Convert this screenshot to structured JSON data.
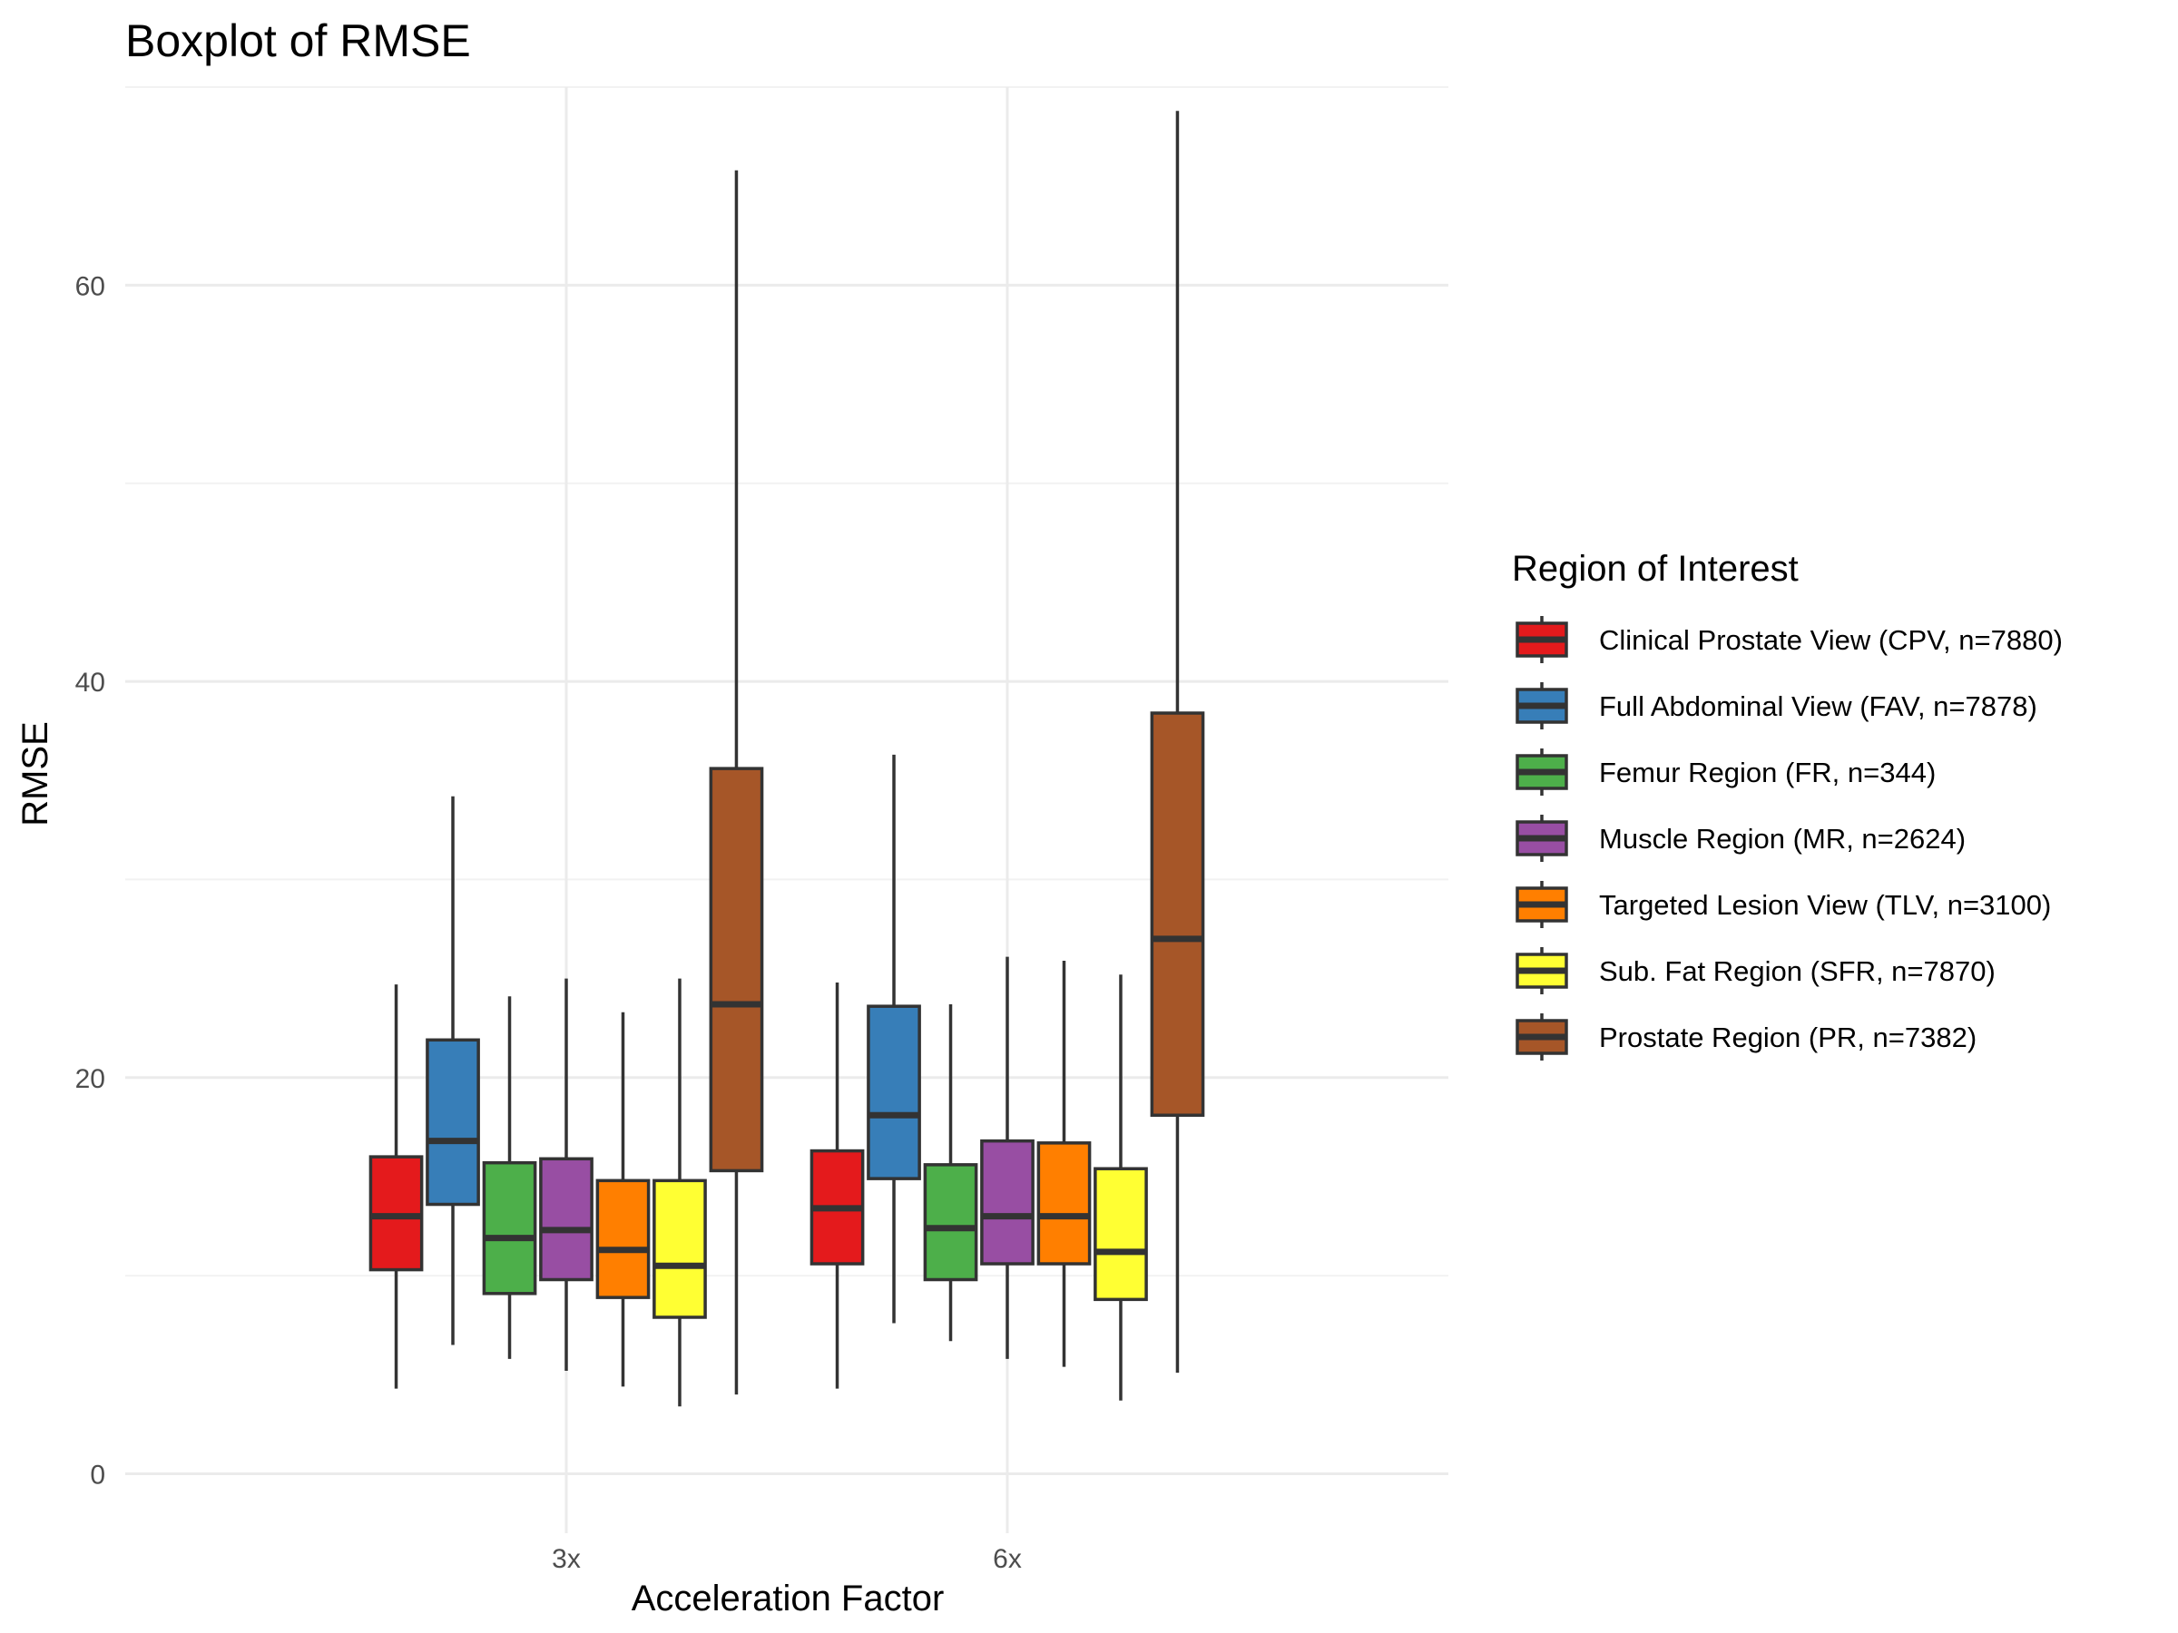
{
  "chart_data": {
    "type": "boxplot",
    "title": "Boxplot of RMSE",
    "xlabel": "Acceleration Factor",
    "ylabel": "RMSE",
    "ylim": [
      -3,
      70
    ],
    "y_ticks": [
      0,
      20,
      40,
      60
    ],
    "categories": [
      "3x",
      "6x"
    ],
    "legend": {
      "title": "Region of Interest",
      "position": "right"
    },
    "grid": true,
    "series": [
      {
        "name": "Clinical Prostate View (CPV, n=7880)",
        "color": "#E41A1C",
        "boxes": [
          {
            "whisker_low": 4.3,
            "q1": 10.3,
            "median": 13.0,
            "q3": 16.0,
            "whisker_high": 24.7
          },
          {
            "whisker_low": 4.3,
            "q1": 10.6,
            "median": 13.4,
            "q3": 16.3,
            "whisker_high": 24.8
          }
        ]
      },
      {
        "name": "Full Abdominal View (FAV, n=7878)",
        "color": "#377EB8",
        "boxes": [
          {
            "whisker_low": 6.5,
            "q1": 13.6,
            "median": 16.8,
            "q3": 21.9,
            "whisker_high": 34.2
          },
          {
            "whisker_low": 7.6,
            "q1": 14.9,
            "median": 18.1,
            "q3": 23.6,
            "whisker_high": 36.3
          }
        ]
      },
      {
        "name": "Femur Region (FR, n=344)",
        "color": "#4DAF4A",
        "boxes": [
          {
            "whisker_low": 5.8,
            "q1": 9.1,
            "median": 11.9,
            "q3": 15.7,
            "whisker_high": 24.1
          },
          {
            "whisker_low": 6.7,
            "q1": 9.8,
            "median": 12.4,
            "q3": 15.6,
            "whisker_high": 23.7
          }
        ]
      },
      {
        "name": "Muscle Region (MR, n=2624)",
        "color": "#984EA3",
        "boxes": [
          {
            "whisker_low": 5.2,
            "q1": 9.8,
            "median": 12.3,
            "q3": 15.9,
            "whisker_high": 25.0
          },
          {
            "whisker_low": 5.8,
            "q1": 10.6,
            "median": 13.0,
            "q3": 16.8,
            "whisker_high": 26.1
          }
        ]
      },
      {
        "name": "Targeted Lesion View (TLV, n=3100)",
        "color": "#FF7F00",
        "boxes": [
          {
            "whisker_low": 4.4,
            "q1": 8.9,
            "median": 11.3,
            "q3": 14.8,
            "whisker_high": 23.3
          },
          {
            "whisker_low": 5.4,
            "q1": 10.6,
            "median": 13.0,
            "q3": 16.7,
            "whisker_high": 25.9
          }
        ]
      },
      {
        "name": "Sub. Fat Region (SFR, n=7870)",
        "color": "#FFFF33",
        "boxes": [
          {
            "whisker_low": 3.4,
            "q1": 7.9,
            "median": 10.5,
            "q3": 14.8,
            "whisker_high": 25.0
          },
          {
            "whisker_low": 3.7,
            "q1": 8.8,
            "median": 11.2,
            "q3": 15.4,
            "whisker_high": 25.2
          }
        ]
      },
      {
        "name": "Prostate Region (PR, n=7382)",
        "color": "#A65628",
        "boxes": [
          {
            "whisker_low": 4.0,
            "q1": 15.3,
            "median": 23.7,
            "q3": 35.6,
            "whisker_high": 65.8
          },
          {
            "whisker_low": 5.1,
            "q1": 18.1,
            "median": 27.0,
            "q3": 38.4,
            "whisker_high": 68.8
          }
        ]
      }
    ]
  }
}
